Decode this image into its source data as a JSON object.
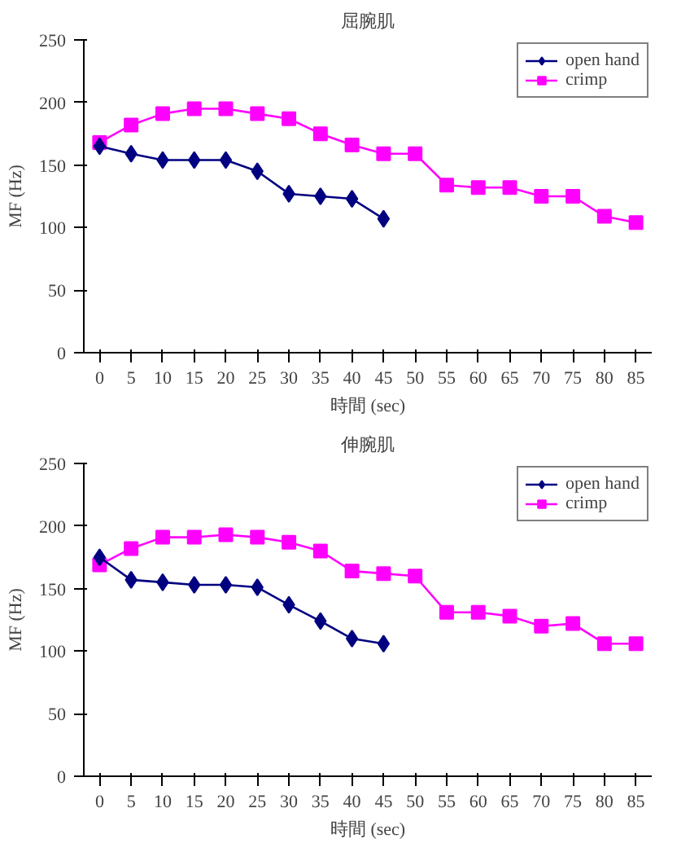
{
  "chart_data": [
    {
      "type": "line",
      "title": "屈腕肌",
      "xlabel": "時間 (sec)",
      "ylabel": "MF (Hz)",
      "categories": [
        "0",
        "5",
        "10",
        "15",
        "20",
        "25",
        "30",
        "35",
        "40",
        "45",
        "50",
        "55",
        "60",
        "65",
        "70",
        "75",
        "80",
        "85"
      ],
      "ylim": [
        0,
        250
      ],
      "yticks": [
        0,
        50,
        100,
        150,
        200,
        250
      ],
      "grid": false,
      "legend": "top right",
      "series": [
        {
          "name": "open hand",
          "color": "#000080",
          "marker": "diamond",
          "values": [
            165,
            159,
            154,
            154,
            154,
            145,
            127,
            125,
            123,
            107,
            null,
            null,
            null,
            null,
            null,
            null,
            null,
            null
          ]
        },
        {
          "name": "crimp",
          "color": "#ff00ff",
          "marker": "square",
          "values": [
            168,
            182,
            191,
            195,
            195,
            191,
            187,
            175,
            166,
            159,
            159,
            134,
            132,
            132,
            125,
            125,
            109,
            104
          ]
        }
      ]
    },
    {
      "type": "line",
      "title": "伸腕肌",
      "xlabel": "時間 (sec)",
      "ylabel": "MF (Hz)",
      "categories": [
        "0",
        "5",
        "10",
        "15",
        "20",
        "25",
        "30",
        "35",
        "40",
        "45",
        "50",
        "55",
        "60",
        "65",
        "70",
        "75",
        "80",
        "85"
      ],
      "ylim": [
        0,
        250
      ],
      "yticks": [
        0,
        50,
        100,
        150,
        200,
        250
      ],
      "grid": false,
      "legend": "top right",
      "series": [
        {
          "name": "open hand",
          "color": "#000080",
          "marker": "diamond",
          "values": [
            175,
            157,
            155,
            153,
            153,
            151,
            137,
            124,
            110,
            106,
            null,
            null,
            null,
            null,
            null,
            null,
            null,
            null
          ]
        },
        {
          "name": "crimp",
          "color": "#ff00ff",
          "marker": "square",
          "values": [
            169,
            182,
            191,
            191,
            193,
            191,
            187,
            180,
            164,
            162,
            160,
            131,
            131,
            128,
            120,
            122,
            106,
            106
          ]
        }
      ]
    }
  ]
}
